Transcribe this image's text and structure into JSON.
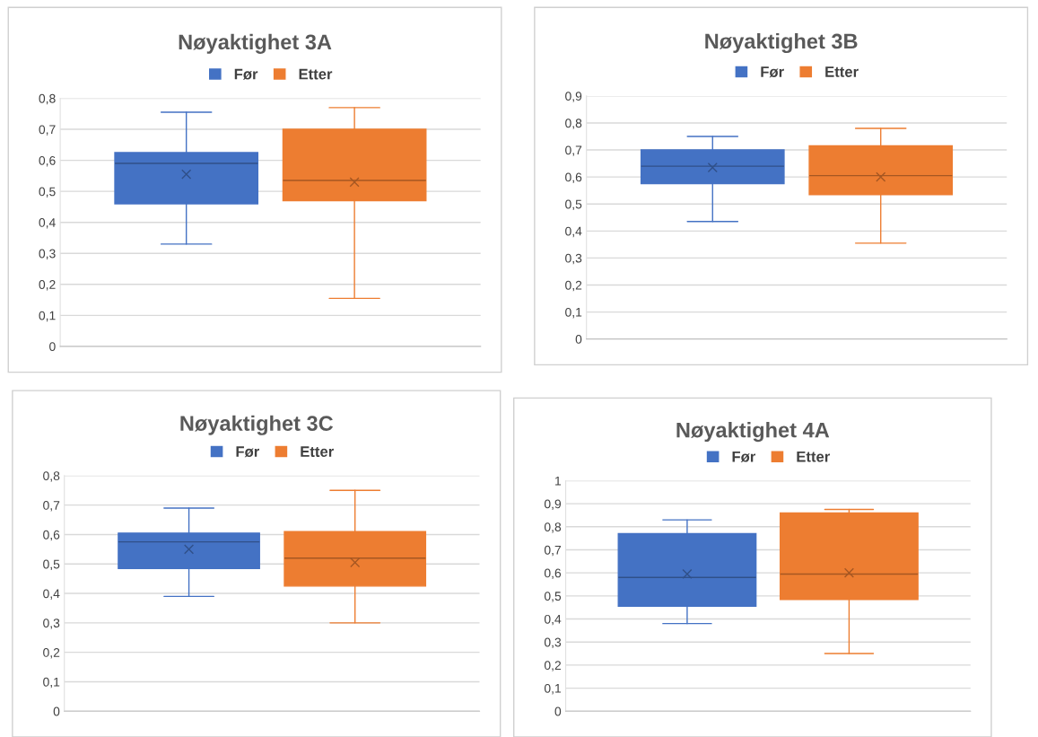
{
  "chart_data": [
    {
      "type": "box",
      "title": "Nøyaktighet 3A",
      "categories": [
        null
      ],
      "legend": "top",
      "grid": "y",
      "marker": "cross",
      "ylim": [
        0,
        0.8
      ],
      "yticks": [
        0,
        {
          "value": 0.1,
          "label": "0,1"
        },
        {
          "value": 0.2,
          "label": "0,2"
        },
        {
          "value": 0.3,
          "label": "0,3"
        },
        {
          "value": 0.4,
          "label": "0,4"
        },
        {
          "value": 0.5,
          "label": "0,5"
        },
        {
          "value": 0.6,
          "label": "0,6"
        },
        {
          "value": 0.7,
          "label": "0,7"
        },
        {
          "value": 0.8,
          "label": "0,8"
        }
      ],
      "series": [
        {
          "name": "Før",
          "color": "#4472c4",
          "boxes": [
            {
              "low": 0.33,
              "q1": 0.46,
              "median": 0.59,
              "q3": 0.625,
              "high": 0.755,
              "mean": 0.555
            }
          ]
        },
        {
          "name": "Etter",
          "color": "#ed7d31",
          "boxes": [
            {
              "low": 0.155,
              "q1": 0.47,
              "median": 0.535,
              "q3": 0.7,
              "high": 0.77,
              "mean": 0.53
            }
          ]
        }
      ]
    },
    {
      "type": "box",
      "title": "Nøyaktighet 3B",
      "categories": [
        null
      ],
      "legend": "top",
      "grid": "y",
      "marker": "cross",
      "ylim": [
        0,
        0.9
      ],
      "yticks": [
        0,
        {
          "value": 0.1,
          "label": "0,1"
        },
        {
          "value": 0.2,
          "label": "0,2"
        },
        {
          "value": 0.3,
          "label": "0,3"
        },
        {
          "value": 0.4,
          "label": "0,4"
        },
        {
          "value": 0.5,
          "label": "0,5"
        },
        {
          "value": 0.6,
          "label": "0,6"
        },
        {
          "value": 0.7,
          "label": "0,7"
        },
        {
          "value": 0.8,
          "label": "0,8"
        },
        {
          "value": 0.9,
          "label": "0,9"
        }
      ],
      "series": [
        {
          "name": "Før",
          "color": "#4472c4",
          "boxes": [
            {
              "low": 0.435,
              "q1": 0.575,
              "median": 0.64,
              "q3": 0.7,
              "high": 0.75,
              "mean": 0.635
            }
          ]
        },
        {
          "name": "Etter",
          "color": "#ed7d31",
          "boxes": [
            {
              "low": 0.355,
              "q1": 0.535,
              "median": 0.605,
              "q3": 0.715,
              "high": 0.78,
              "mean": 0.6
            }
          ]
        }
      ]
    },
    {
      "type": "box",
      "title": "Nøyaktighet 3C",
      "categories": [
        null
      ],
      "legend": "top",
      "grid": "y",
      "marker": "cross",
      "ylim": [
        0,
        0.8
      ],
      "yticks": [
        0,
        {
          "value": 0.1,
          "label": "0,1"
        },
        {
          "value": 0.2,
          "label": "0,2"
        },
        {
          "value": 0.3,
          "label": "0,3"
        },
        {
          "value": 0.4,
          "label": "0,4"
        },
        {
          "value": 0.5,
          "label": "0,5"
        },
        {
          "value": 0.6,
          "label": "0,6"
        },
        {
          "value": 0.7,
          "label": "0,7"
        },
        {
          "value": 0.8,
          "label": "0,8"
        }
      ],
      "series": [
        {
          "name": "Før",
          "color": "#4472c4",
          "boxes": [
            {
              "low": 0.39,
              "q1": 0.485,
              "median": 0.575,
              "q3": 0.605,
              "high": 0.69,
              "mean": 0.55
            }
          ]
        },
        {
          "name": "Etter",
          "color": "#ed7d31",
          "boxes": [
            {
              "low": 0.3,
              "q1": 0.425,
              "median": 0.52,
              "q3": 0.61,
              "high": 0.75,
              "mean": 0.505
            }
          ]
        }
      ]
    },
    {
      "type": "box",
      "title": "Nøyaktighet 4A",
      "categories": [
        null
      ],
      "legend": "top",
      "grid": "y",
      "marker": "cross",
      "ylim": [
        0,
        1
      ],
      "yticks": [
        0,
        {
          "value": 0.1,
          "label": "0,1"
        },
        {
          "value": 0.2,
          "label": "0,2"
        },
        {
          "value": 0.3,
          "label": "0,3"
        },
        {
          "value": 0.4,
          "label": "0,4"
        },
        {
          "value": 0.5,
          "label": "0,5"
        },
        {
          "value": 0.6,
          "label": "0,6"
        },
        {
          "value": 0.7,
          "label": "0,7"
        },
        {
          "value": 0.8,
          "label": "0,8"
        },
        {
          "value": 0.9,
          "label": "0,9"
        },
        1
      ],
      "series": [
        {
          "name": "Før",
          "color": "#4472c4",
          "boxes": [
            {
              "low": 0.38,
              "q1": 0.455,
              "median": 0.58,
              "q3": 0.77,
              "high": 0.83,
              "mean": 0.595
            }
          ]
        },
        {
          "name": "Etter",
          "color": "#ed7d31",
          "boxes": [
            {
              "low": 0.25,
              "q1": 0.485,
              "median": 0.595,
              "q3": 0.86,
              "high": 0.875,
              "mean": 0.6
            }
          ]
        }
      ]
    }
  ]
}
